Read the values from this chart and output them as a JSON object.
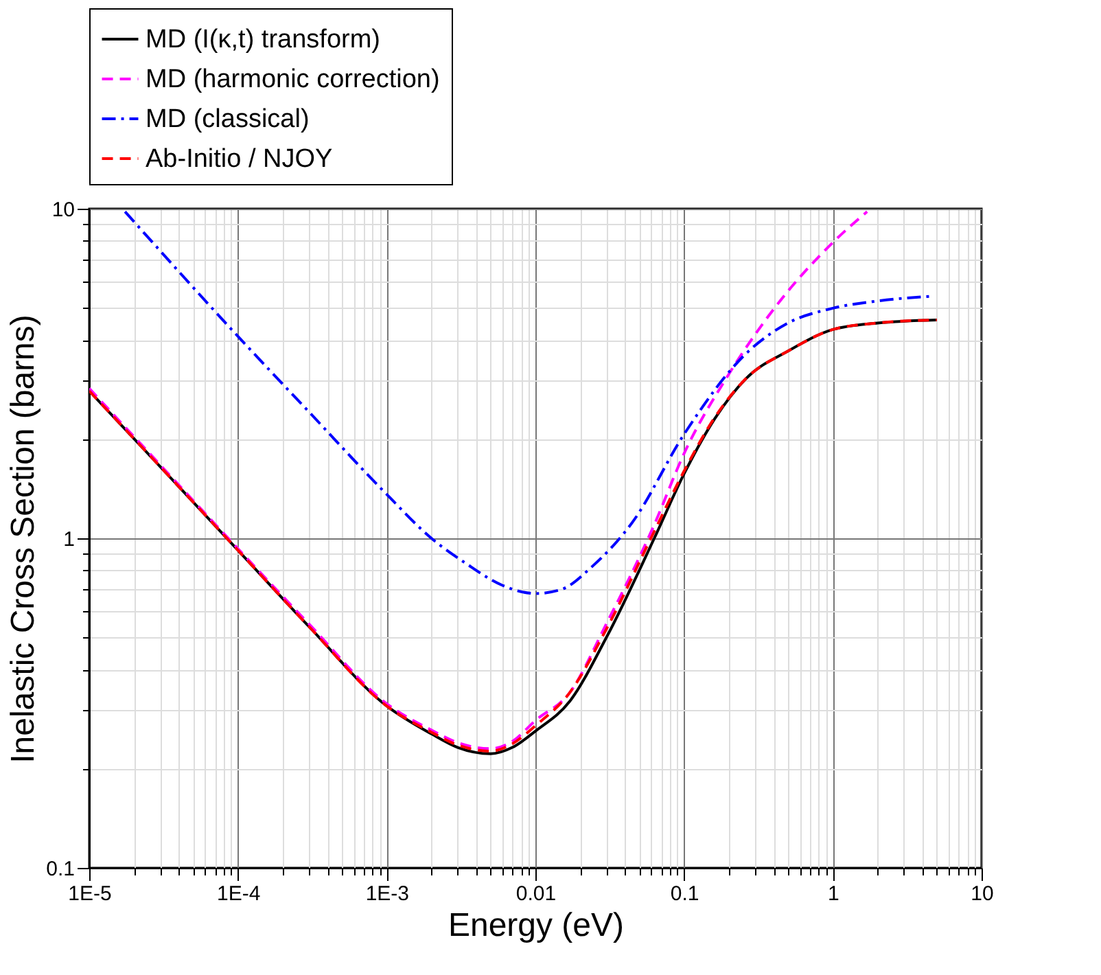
{
  "chart_data": {
    "type": "line",
    "xlabel": "Energy (eV)",
    "ylabel": "Inelastic Cross Section (barns)",
    "log": "xy",
    "grid": true,
    "legend": "top",
    "marker": "none",
    "xlim": [
      1e-05,
      10
    ],
    "ylim": [
      0.1,
      10
    ],
    "xticks": [
      {
        "value": 1e-05,
        "label": "1E-5"
      },
      {
        "value": 2e-05,
        "label": null
      },
      {
        "value": 3e-05,
        "label": null
      },
      {
        "value": 4e-05,
        "label": null
      },
      {
        "value": 5e-05,
        "label": null
      },
      {
        "value": 6e-05,
        "label": null
      },
      {
        "value": 7e-05,
        "label": null
      },
      {
        "value": 8e-05,
        "label": null
      },
      {
        "value": 9e-05,
        "label": null
      },
      {
        "value": 0.0001,
        "label": "1E-4"
      },
      {
        "value": 0.0002,
        "label": null
      },
      {
        "value": 0.0003,
        "label": null
      },
      {
        "value": 0.0004,
        "label": null
      },
      {
        "value": 0.0005,
        "label": null
      },
      {
        "value": 0.0006,
        "label": null
      },
      {
        "value": 0.0007,
        "label": null
      },
      {
        "value": 0.0008,
        "label": null
      },
      {
        "value": 0.0009,
        "label": null
      },
      {
        "value": 0.001,
        "label": "1E-3"
      },
      {
        "value": 0.002,
        "label": null
      },
      {
        "value": 0.003,
        "label": null
      },
      {
        "value": 0.004,
        "label": null
      },
      {
        "value": 0.005,
        "label": null
      },
      {
        "value": 0.006,
        "label": null
      },
      {
        "value": 0.007,
        "label": null
      },
      {
        "value": 0.008,
        "label": null
      },
      {
        "value": 0.009,
        "label": null
      },
      0.01,
      {
        "value": 0.02,
        "label": null
      },
      {
        "value": 0.03,
        "label": null
      },
      {
        "value": 0.04,
        "label": null
      },
      {
        "value": 0.05,
        "label": null
      },
      {
        "value": 0.06,
        "label": null
      },
      {
        "value": 0.07,
        "label": null
      },
      {
        "value": 0.08,
        "label": null
      },
      {
        "value": 0.09,
        "label": null
      },
      0.1,
      {
        "value": 0.2,
        "label": null
      },
      {
        "value": 0.3,
        "label": null
      },
      {
        "value": 0.4,
        "label": null
      },
      {
        "value": 0.5,
        "label": null
      },
      {
        "value": 0.6,
        "label": null
      },
      {
        "value": 0.7,
        "label": null
      },
      {
        "value": 0.8,
        "label": null
      },
      {
        "value": 0.9,
        "label": null
      },
      1,
      {
        "value": 2,
        "label": null
      },
      {
        "value": 3,
        "label": null
      },
      {
        "value": 4,
        "label": null
      },
      {
        "value": 5,
        "label": null
      },
      {
        "value": 6,
        "label": null
      },
      {
        "value": 7,
        "label": null
      },
      {
        "value": 8,
        "label": null
      },
      {
        "value": 9,
        "label": null
      },
      10
    ],
    "yticks": [
      0.1,
      {
        "value": 0.2,
        "label": null
      },
      {
        "value": 0.3,
        "label": null
      },
      {
        "value": 0.4,
        "label": null
      },
      {
        "value": 0.5,
        "label": null
      },
      {
        "value": 0.6,
        "label": null
      },
      {
        "value": 0.7,
        "label": null
      },
      {
        "value": 0.8,
        "label": null
      },
      {
        "value": 0.9,
        "label": null
      },
      1,
      {
        "value": 2,
        "label": null
      },
      {
        "value": 3,
        "label": null
      },
      {
        "value": 4,
        "label": null
      },
      {
        "value": 5,
        "label": null
      },
      {
        "value": 6,
        "label": null
      },
      {
        "value": 7,
        "label": null
      },
      {
        "value": 8,
        "label": null
      },
      {
        "value": 9,
        "label": null
      },
      10
    ],
    "series": [
      {
        "name": "MD (I(κ,t) transform)",
        "color": "#000000",
        "line_style": "solid",
        "x": [
          1e-05,
          3e-05,
          0.0001,
          0.0003,
          0.001,
          0.002,
          0.003,
          0.005,
          0.007,
          0.01,
          0.017,
          0.03,
          0.063,
          0.1,
          0.16,
          0.26,
          0.5,
          1,
          2,
          5
        ],
        "values": [
          2.8,
          1.65,
          0.92,
          0.54,
          0.31,
          0.255,
          0.232,
          0.222,
          0.232,
          0.26,
          0.32,
          0.5,
          1.0,
          1.57,
          2.3,
          3.05,
          3.7,
          4.3,
          4.5,
          4.6
        ]
      },
      {
        "name": "MD (harmonic correction)",
        "color": "#ff00ff",
        "line_style": "dashed",
        "x": [
          1e-05,
          3e-05,
          0.0001,
          0.0003,
          0.001,
          0.002,
          0.003,
          0.005,
          0.007,
          0.01,
          0.017,
          0.03,
          0.063,
          0.1,
          0.2,
          0.42,
          1,
          1.7
        ],
        "values": [
          2.85,
          1.67,
          0.93,
          0.55,
          0.315,
          0.262,
          0.24,
          0.23,
          0.242,
          0.28,
          0.34,
          0.55,
          1.1,
          1.81,
          3.15,
          5.1,
          7.9,
          9.8
        ]
      },
      {
        "name": "MD (classical)",
        "color": "#0000ff",
        "line_style": "dashdot",
        "x": [
          1.74e-05,
          0.0001,
          0.0003,
          0.001,
          0.002,
          0.0034,
          0.006,
          0.01,
          0.015,
          0.024,
          0.045,
          0.1,
          0.26,
          0.5,
          1,
          2,
          4.7
        ],
        "values": [
          9.8,
          4.1,
          2.42,
          1.36,
          1.0,
          0.84,
          0.72,
          0.68,
          0.7,
          0.82,
          1.12,
          2.07,
          3.63,
          4.5,
          4.99,
          5.25,
          5.43
        ]
      },
      {
        "name": "Ab-Initio / NJOY",
        "color": "#ff0000",
        "line_style": "dashed",
        "x": [
          1e-05,
          3e-05,
          0.0001,
          0.0003,
          0.001,
          0.002,
          0.003,
          0.005,
          0.007,
          0.01,
          0.017,
          0.03,
          0.063,
          0.1,
          0.16,
          0.26,
          0.5,
          1,
          2,
          5
        ],
        "values": [
          2.8,
          1.65,
          0.92,
          0.54,
          0.31,
          0.258,
          0.236,
          0.226,
          0.238,
          0.27,
          0.34,
          0.53,
          1.05,
          1.6,
          2.32,
          3.05,
          3.7,
          4.3,
          4.5,
          4.6
        ]
      }
    ]
  }
}
